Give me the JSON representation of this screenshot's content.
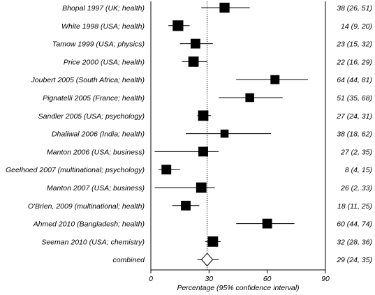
{
  "chart_data": {
    "type": "forest",
    "xlabel": "Percentage (95% confidence interval)",
    "xlim": [
      0,
      90
    ],
    "x_ticks": [
      "0",
      "30",
      "60",
      "90"
    ],
    "reference_line": 29,
    "studies": [
      {
        "label": "Bhopal 1997 (UK; health)",
        "estimate": 38,
        "low": 26,
        "high": 51,
        "ci_text": "38 (26, 51)",
        "weight": 0.7
      },
      {
        "label": "White 1998 (USA; health)",
        "estimate": 14,
        "low": 9,
        "high": 20,
        "ci_text": "14 (9, 20)",
        "weight": 0.8
      },
      {
        "label": "Tamow 1999 (USA; physics)",
        "estimate": 23,
        "low": 15,
        "high": 32,
        "ci_text": "23 (15, 32)",
        "weight": 0.65
      },
      {
        "label": "Price 2000 (USA; health)",
        "estimate": 22,
        "low": 16,
        "high": 29,
        "ci_text": "22 (16, 29)",
        "weight": 0.75
      },
      {
        "label": "Joubert 2005 (South Africa; health)",
        "estimate": 64,
        "low": 44,
        "high": 81,
        "ci_text": "64 (44, 81)",
        "weight": 0.55
      },
      {
        "label": "Pignatelli 2005 (France; health)",
        "estimate": 51,
        "low": 35,
        "high": 68,
        "ci_text": "51 (35, 68)",
        "weight": 0.5
      },
      {
        "label": "Sandler 2005 (USA; psychology)",
        "estimate": 27,
        "low": 24,
        "high": 31,
        "ci_text": "27 (24, 31)",
        "weight": 0.75
      },
      {
        "label": "Dhaliwal 2006 (India; health)",
        "estimate": 38,
        "low": 18,
        "high": 62,
        "ci_text": "38 (18, 62)",
        "weight": 0.4
      },
      {
        "label": "Manton 2006 (USA; business)",
        "estimate": 27,
        "low": 2,
        "high": 35,
        "ci_text": "27 (2, 35)",
        "weight": 0.65
      },
      {
        "label": "Geelhoed 2007 (multinational; psychology)",
        "estimate": 8,
        "low": 4,
        "high": 15,
        "ci_text": "8 (4, 15)",
        "weight": 0.65
      },
      {
        "label": "Manton 2007 (USA; business)",
        "estimate": 26,
        "low": 2,
        "high": 33,
        "ci_text": "26 (2, 33)",
        "weight": 0.75
      },
      {
        "label": "O'Brien, 2009 (multinational; health)",
        "estimate": 18,
        "low": 11,
        "high": 25,
        "ci_text": "18 (11, 25)",
        "weight": 0.65
      },
      {
        "label": "Ahmed 2010 (Bangladesh; health)",
        "estimate": 60,
        "low": 44,
        "high": 74,
        "ci_text": "60 (44, 74)",
        "weight": 0.65
      },
      {
        "label": "Seeman 2010 (USA; chemistry)",
        "estimate": 32,
        "low": 28,
        "high": 36,
        "ci_text": "32 (28, 36)",
        "weight": 0.75
      }
    ],
    "combined": {
      "label": "combined",
      "estimate": 29,
      "low": 24,
      "high": 35,
      "ci_text": "29 (24, 35)"
    }
  }
}
